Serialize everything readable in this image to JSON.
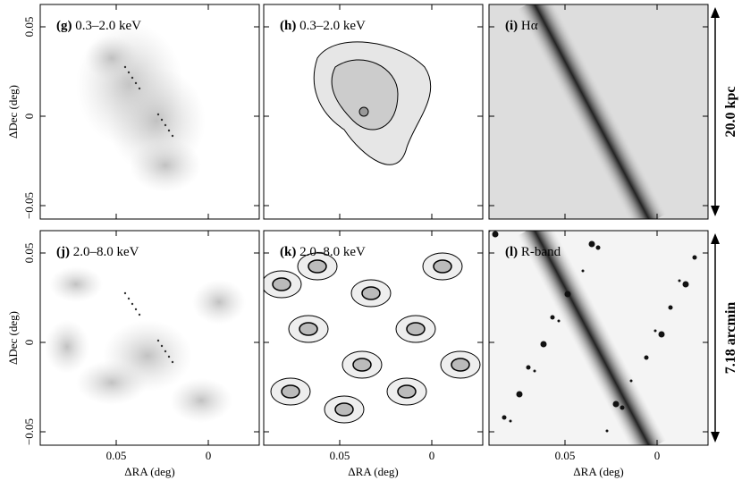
{
  "panels": [
    {
      "label": "(g)",
      "band": "0.3–2.0 keV"
    },
    {
      "label": "(h)",
      "band": "0.3–2.0 keV"
    },
    {
      "label": "(i)",
      "band": "Hα"
    },
    {
      "label": "(j)",
      "band": "2.0–8.0 keV"
    },
    {
      "label": "(k)",
      "band": "2.0–8.0 keV"
    },
    {
      "label": "(l)",
      "band": "R-band"
    }
  ],
  "axes": {
    "y_label": "ΔDec (deg)",
    "x_label": "ΔRA (deg)",
    "y_ticks": [
      "0.05",
      "0",
      "−0.05"
    ],
    "x_ticks": [
      "0.05",
      "0"
    ]
  },
  "scale_bars": [
    "20.0 kpc",
    "7.18 arcmin"
  ]
}
